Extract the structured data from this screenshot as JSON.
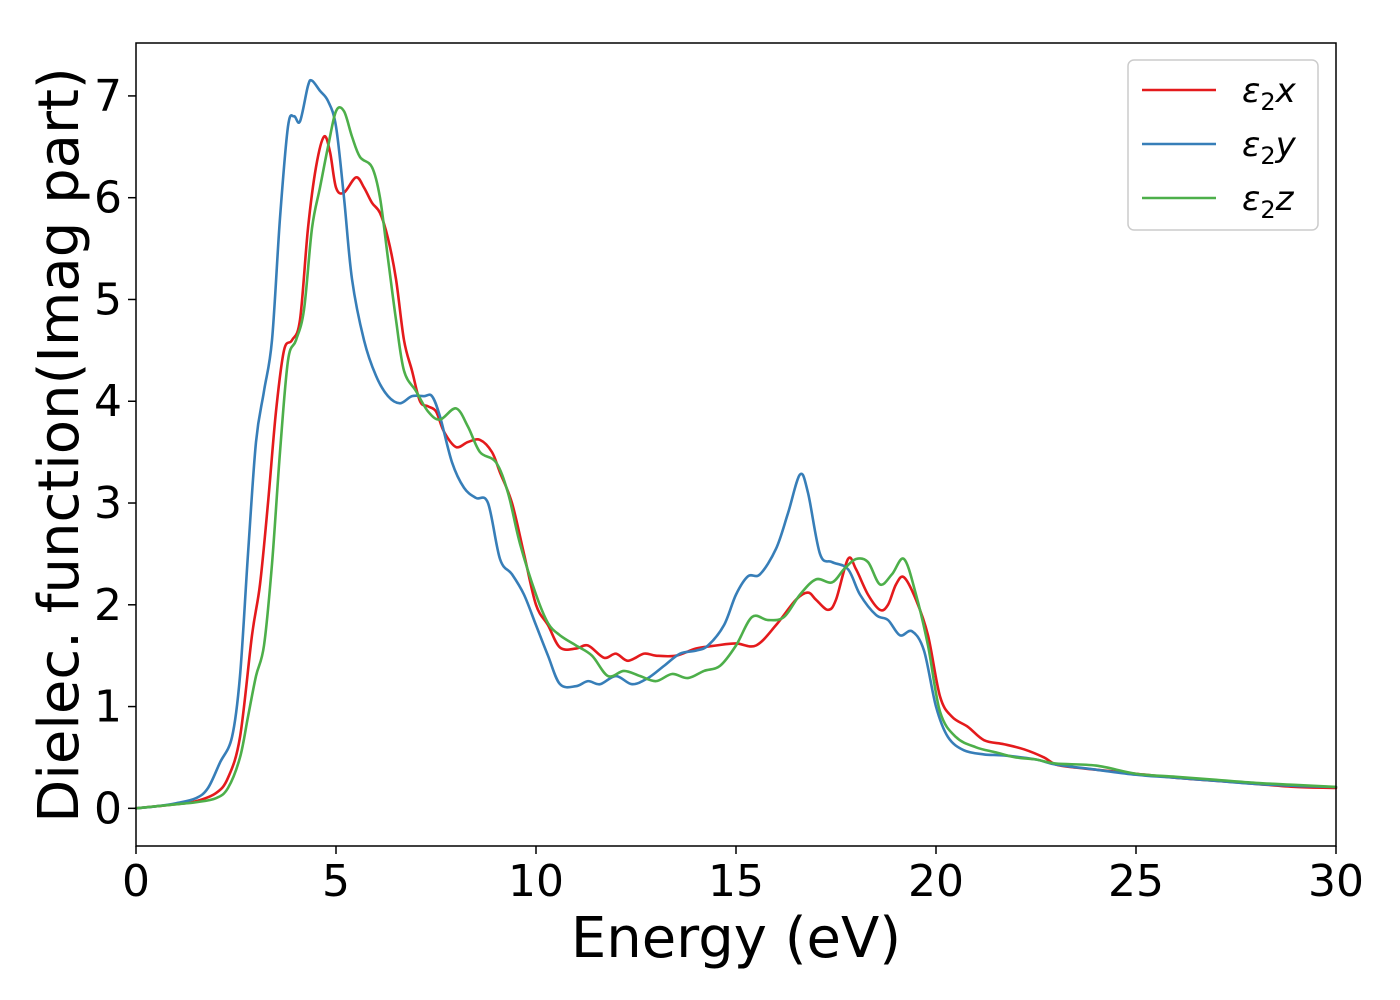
{
  "chart_data": {
    "type": "line",
    "xlabel": "Energy (eV)",
    "ylabel": "Dielec. function(Imag part)",
    "xlim": [
      0,
      30
    ],
    "ylim": [
      -0.37,
      7.52
    ],
    "xticks": [
      0,
      5,
      10,
      15,
      20,
      25,
      30
    ],
    "yticks": [
      0,
      1,
      2,
      3,
      4,
      5,
      6,
      7
    ],
    "grid": false,
    "legend_position": "top-right",
    "series": [
      {
        "name": "ε₂x",
        "legend_base": "ε",
        "legend_sub": "2",
        "legend_suffix": "x",
        "color": "#e41a1c",
        "points": [
          [
            0,
            0
          ],
          [
            0.5,
            0.02
          ],
          [
            1.0,
            0.04
          ],
          [
            1.5,
            0.07
          ],
          [
            2.0,
            0.15
          ],
          [
            2.3,
            0.3
          ],
          [
            2.6,
            0.7
          ],
          [
            2.9,
            1.7
          ],
          [
            3.1,
            2.2
          ],
          [
            3.3,
            3.0
          ],
          [
            3.5,
            3.9
          ],
          [
            3.7,
            4.5
          ],
          [
            3.9,
            4.6
          ],
          [
            4.1,
            4.8
          ],
          [
            4.3,
            5.7
          ],
          [
            4.5,
            6.3
          ],
          [
            4.7,
            6.6
          ],
          [
            4.85,
            6.45
          ],
          [
            5.0,
            6.1
          ],
          [
            5.2,
            6.05
          ],
          [
            5.5,
            6.2
          ],
          [
            5.7,
            6.1
          ],
          [
            5.9,
            5.95
          ],
          [
            6.1,
            5.85
          ],
          [
            6.3,
            5.6
          ],
          [
            6.5,
            5.2
          ],
          [
            6.7,
            4.6
          ],
          [
            6.9,
            4.3
          ],
          [
            7.1,
            4.0
          ],
          [
            7.3,
            3.95
          ],
          [
            7.5,
            3.9
          ],
          [
            7.7,
            3.7
          ],
          [
            8.0,
            3.55
          ],
          [
            8.3,
            3.6
          ],
          [
            8.6,
            3.62
          ],
          [
            8.9,
            3.5
          ],
          [
            9.1,
            3.3
          ],
          [
            9.4,
            3.0
          ],
          [
            9.7,
            2.5
          ],
          [
            10.0,
            2.0
          ],
          [
            10.3,
            1.8
          ],
          [
            10.6,
            1.58
          ],
          [
            11.0,
            1.57
          ],
          [
            11.3,
            1.6
          ],
          [
            11.7,
            1.48
          ],
          [
            12.0,
            1.52
          ],
          [
            12.3,
            1.45
          ],
          [
            12.7,
            1.52
          ],
          [
            13.0,
            1.5
          ],
          [
            13.5,
            1.5
          ],
          [
            14.0,
            1.57
          ],
          [
            14.5,
            1.6
          ],
          [
            15.0,
            1.62
          ],
          [
            15.5,
            1.6
          ],
          [
            16.0,
            1.8
          ],
          [
            16.5,
            2.05
          ],
          [
            16.8,
            2.12
          ],
          [
            17.0,
            2.05
          ],
          [
            17.3,
            1.95
          ],
          [
            17.5,
            2.05
          ],
          [
            17.8,
            2.45
          ],
          [
            18.0,
            2.35
          ],
          [
            18.3,
            2.1
          ],
          [
            18.6,
            1.95
          ],
          [
            18.8,
            2.0
          ],
          [
            19.0,
            2.2
          ],
          [
            19.2,
            2.27
          ],
          [
            19.5,
            2.05
          ],
          [
            19.8,
            1.7
          ],
          [
            20.1,
            1.1
          ],
          [
            20.4,
            0.9
          ],
          [
            20.8,
            0.8
          ],
          [
            21.2,
            0.67
          ],
          [
            21.7,
            0.63
          ],
          [
            22.2,
            0.58
          ],
          [
            22.7,
            0.5
          ],
          [
            23.0,
            0.43
          ],
          [
            23.5,
            0.4
          ],
          [
            24.0,
            0.38
          ],
          [
            25.0,
            0.34
          ],
          [
            26.0,
            0.3
          ],
          [
            27.0,
            0.27
          ],
          [
            28.0,
            0.24
          ],
          [
            29.0,
            0.21
          ],
          [
            30.0,
            0.2
          ]
        ]
      },
      {
        "name": "ε₂y",
        "legend_base": "ε",
        "legend_sub": "2",
        "legend_suffix": "y",
        "color": "#377eb8",
        "points": [
          [
            0,
            0
          ],
          [
            0.5,
            0.02
          ],
          [
            1.0,
            0.05
          ],
          [
            1.5,
            0.1
          ],
          [
            1.8,
            0.2
          ],
          [
            2.1,
            0.45
          ],
          [
            2.4,
            0.7
          ],
          [
            2.6,
            1.3
          ],
          [
            2.8,
            2.5
          ],
          [
            3.0,
            3.6
          ],
          [
            3.2,
            4.1
          ],
          [
            3.4,
            4.6
          ],
          [
            3.6,
            5.8
          ],
          [
            3.8,
            6.7
          ],
          [
            3.95,
            6.8
          ],
          [
            4.1,
            6.75
          ],
          [
            4.3,
            7.1
          ],
          [
            4.4,
            7.15
          ],
          [
            4.6,
            7.05
          ],
          [
            4.8,
            6.95
          ],
          [
            5.0,
            6.7
          ],
          [
            5.2,
            6.0
          ],
          [
            5.4,
            5.2
          ],
          [
            5.7,
            4.6
          ],
          [
            6.0,
            4.25
          ],
          [
            6.3,
            4.05
          ],
          [
            6.6,
            3.98
          ],
          [
            6.9,
            4.05
          ],
          [
            7.2,
            4.05
          ],
          [
            7.4,
            4.05
          ],
          [
            7.6,
            3.85
          ],
          [
            7.9,
            3.4
          ],
          [
            8.2,
            3.15
          ],
          [
            8.5,
            3.05
          ],
          [
            8.8,
            3.0
          ],
          [
            9.1,
            2.45
          ],
          [
            9.4,
            2.3
          ],
          [
            9.7,
            2.1
          ],
          [
            10.0,
            1.8
          ],
          [
            10.3,
            1.5
          ],
          [
            10.6,
            1.22
          ],
          [
            11.0,
            1.2
          ],
          [
            11.3,
            1.25
          ],
          [
            11.6,
            1.22
          ],
          [
            12.0,
            1.3
          ],
          [
            12.4,
            1.22
          ],
          [
            12.8,
            1.28
          ],
          [
            13.2,
            1.4
          ],
          [
            13.6,
            1.52
          ],
          [
            14.0,
            1.55
          ],
          [
            14.3,
            1.6
          ],
          [
            14.7,
            1.8
          ],
          [
            15.0,
            2.1
          ],
          [
            15.3,
            2.28
          ],
          [
            15.6,
            2.3
          ],
          [
            16.0,
            2.55
          ],
          [
            16.3,
            2.9
          ],
          [
            16.6,
            3.28
          ],
          [
            16.8,
            3.1
          ],
          [
            17.1,
            2.5
          ],
          [
            17.4,
            2.42
          ],
          [
            17.8,
            2.35
          ],
          [
            18.1,
            2.1
          ],
          [
            18.5,
            1.9
          ],
          [
            18.8,
            1.85
          ],
          [
            19.1,
            1.7
          ],
          [
            19.4,
            1.74
          ],
          [
            19.7,
            1.55
          ],
          [
            20.0,
            1.0
          ],
          [
            20.3,
            0.7
          ],
          [
            20.7,
            0.57
          ],
          [
            21.2,
            0.53
          ],
          [
            21.7,
            0.52
          ],
          [
            22.5,
            0.48
          ],
          [
            23.0,
            0.43
          ],
          [
            24.0,
            0.38
          ],
          [
            25.0,
            0.33
          ],
          [
            26.0,
            0.3
          ],
          [
            27.0,
            0.27
          ],
          [
            28.0,
            0.24
          ],
          [
            29.0,
            0.22
          ],
          [
            30.0,
            0.21
          ]
        ]
      },
      {
        "name": "ε₂z",
        "legend_base": "ε",
        "legend_sub": "2",
        "legend_suffix": "z",
        "color": "#4daf4a",
        "points": [
          [
            0,
            0
          ],
          [
            0.5,
            0.02
          ],
          [
            1.0,
            0.04
          ],
          [
            1.5,
            0.06
          ],
          [
            2.0,
            0.1
          ],
          [
            2.3,
            0.2
          ],
          [
            2.6,
            0.5
          ],
          [
            2.8,
            0.9
          ],
          [
            3.0,
            1.3
          ],
          [
            3.2,
            1.6
          ],
          [
            3.4,
            2.4
          ],
          [
            3.6,
            3.5
          ],
          [
            3.8,
            4.4
          ],
          [
            4.0,
            4.6
          ],
          [
            4.2,
            4.9
          ],
          [
            4.4,
            5.7
          ],
          [
            4.6,
            6.1
          ],
          [
            4.8,
            6.5
          ],
          [
            5.0,
            6.85
          ],
          [
            5.2,
            6.85
          ],
          [
            5.4,
            6.6
          ],
          [
            5.6,
            6.4
          ],
          [
            5.9,
            6.3
          ],
          [
            6.1,
            6.0
          ],
          [
            6.3,
            5.4
          ],
          [
            6.5,
            4.8
          ],
          [
            6.7,
            4.3
          ],
          [
            7.0,
            4.1
          ],
          [
            7.3,
            3.9
          ],
          [
            7.6,
            3.82
          ],
          [
            8.0,
            3.93
          ],
          [
            8.3,
            3.75
          ],
          [
            8.6,
            3.5
          ],
          [
            9.0,
            3.4
          ],
          [
            9.3,
            3.1
          ],
          [
            9.6,
            2.6
          ],
          [
            10.0,
            2.1
          ],
          [
            10.3,
            1.82
          ],
          [
            10.6,
            1.7
          ],
          [
            11.0,
            1.6
          ],
          [
            11.4,
            1.5
          ],
          [
            11.8,
            1.3
          ],
          [
            12.2,
            1.35
          ],
          [
            12.6,
            1.3
          ],
          [
            13.0,
            1.25
          ],
          [
            13.4,
            1.32
          ],
          [
            13.8,
            1.28
          ],
          [
            14.2,
            1.35
          ],
          [
            14.6,
            1.4
          ],
          [
            15.0,
            1.6
          ],
          [
            15.4,
            1.88
          ],
          [
            15.8,
            1.85
          ],
          [
            16.2,
            1.88
          ],
          [
            16.6,
            2.1
          ],
          [
            17.0,
            2.25
          ],
          [
            17.4,
            2.22
          ],
          [
            17.7,
            2.35
          ],
          [
            18.0,
            2.45
          ],
          [
            18.3,
            2.42
          ],
          [
            18.6,
            2.2
          ],
          [
            18.9,
            2.3
          ],
          [
            19.2,
            2.45
          ],
          [
            19.5,
            2.1
          ],
          [
            19.8,
            1.6
          ],
          [
            20.1,
            0.95
          ],
          [
            20.5,
            0.7
          ],
          [
            21.0,
            0.6
          ],
          [
            21.5,
            0.55
          ],
          [
            22.0,
            0.5
          ],
          [
            22.5,
            0.48
          ],
          [
            23.0,
            0.44
          ],
          [
            24.0,
            0.42
          ],
          [
            25.0,
            0.34
          ],
          [
            26.0,
            0.31
          ],
          [
            27.0,
            0.28
          ],
          [
            28.0,
            0.25
          ],
          [
            29.0,
            0.23
          ],
          [
            30.0,
            0.21
          ]
        ]
      }
    ]
  }
}
